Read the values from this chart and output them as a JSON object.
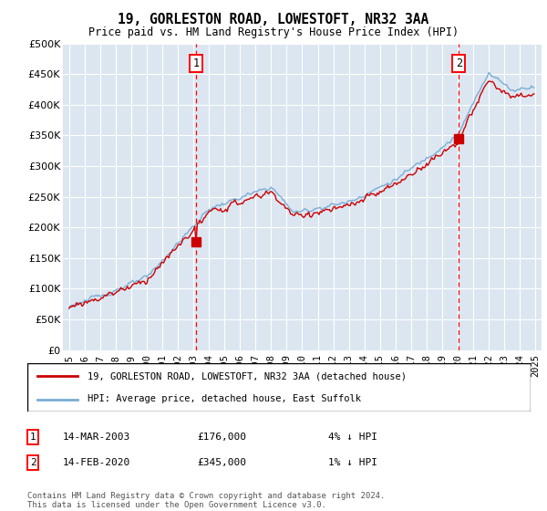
{
  "title": "19, GORLESTON ROAD, LOWESTOFT, NR32 3AA",
  "subtitle": "Price paid vs. HM Land Registry's House Price Index (HPI)",
  "ylim": [
    0,
    500000
  ],
  "yticks": [
    0,
    50000,
    100000,
    150000,
    200000,
    250000,
    300000,
    350000,
    400000,
    450000,
    500000
  ],
  "background_color": "#dce6f1",
  "grid_color": "#ffffff",
  "hpi_color": "#7aadd4",
  "price_color": "#cc0000",
  "sale1_x": 2003.17,
  "sale1_price": 176000,
  "sale2_x": 2020.08,
  "sale2_price": 345000,
  "legend_line1": "19, GORLESTON ROAD, LOWESTOFT, NR32 3AA (detached house)",
  "legend_line2": "HPI: Average price, detached house, East Suffolk",
  "table_row1_date": "14-MAR-2003",
  "table_row1_price": "£176,000",
  "table_row1_hpi": "4% ↓ HPI",
  "table_row2_date": "14-FEB-2020",
  "table_row2_price": "£345,000",
  "table_row2_hpi": "1% ↓ HPI",
  "footnote": "Contains HM Land Registry data © Crown copyright and database right 2024.\nThis data is licensed under the Open Government Licence v3.0.",
  "start_year": 1995,
  "end_year": 2025
}
